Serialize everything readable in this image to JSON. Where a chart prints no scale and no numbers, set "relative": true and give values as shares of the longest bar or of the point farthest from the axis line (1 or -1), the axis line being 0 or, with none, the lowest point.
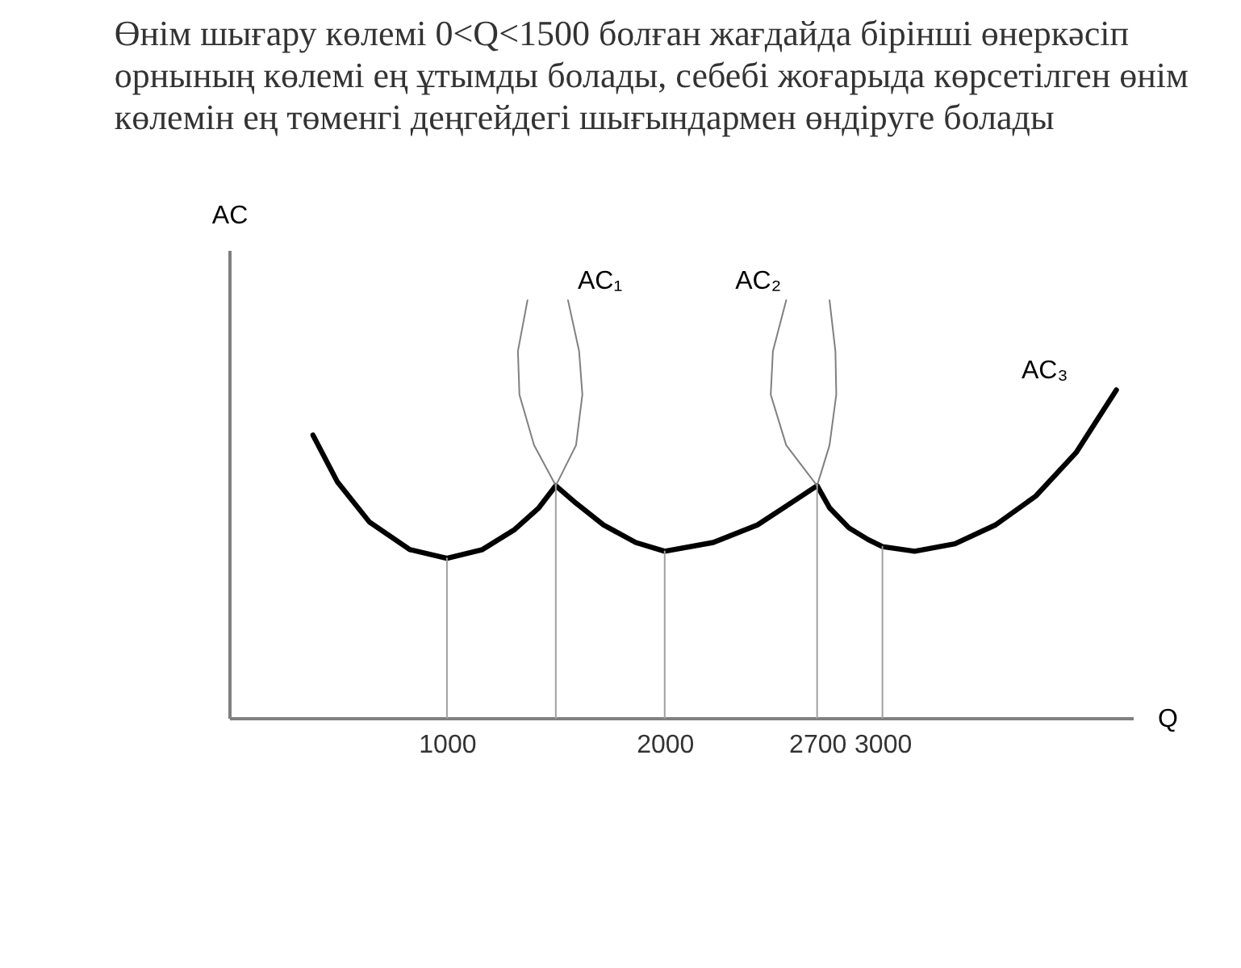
{
  "chart_data": {
    "type": "line",
    "title": "Өнім шығару көлемі 0<Q<1500 болған жағдайда бірінші өнеркәсіп орнының көлемі ең ұтымды болады, себебі жоғарыда көрсетілген өнім көлемін ең төменгі деңгейдегі шығындармен өндіруге болады",
    "xlabel": "Q",
    "ylabel": "AC",
    "relative": true,
    "tick_labels": "x",
    "grid": false,
    "legend": false,
    "marker": "none",
    "line_style": "solid",
    "xlim": [
      0,
      4150
    ],
    "xticks": [
      1000,
      2000,
      2700,
      3000
    ],
    "series": [
      {
        "name": "AC₃",
        "color": "#000000",
        "x": [
          385,
          496,
          644,
          830,
          1000,
          1163,
          1311,
          1422,
          1500,
          1593,
          1719,
          1867,
          2000,
          2223,
          2426,
          2578,
          2700,
          2757,
          2846,
          2934,
          3000,
          3148,
          3333,
          3519,
          3704,
          3889,
          4074
        ],
        "values": [
          0.677,
          0.566,
          0.469,
          0.403,
          0.382,
          0.403,
          0.451,
          0.503,
          0.556,
          0.514,
          0.462,
          0.42,
          0.399,
          0.42,
          0.462,
          0.514,
          0.556,
          0.503,
          0.455,
          0.427,
          0.41,
          0.399,
          0.417,
          0.462,
          0.531,
          0.635,
          0.785
        ]
      },
      {
        "name": "AC₁",
        "color": "#808080",
        "x": [
          1370,
          1326,
          1333,
          1400,
          1500,
          1593,
          1622,
          1607,
          1556
        ],
        "values": [
          1.0,
          0.878,
          0.774,
          0.653,
          0.556,
          0.653,
          0.774,
          0.878,
          1.0
        ]
      },
      {
        "name": "AC₂",
        "color": "#808080",
        "x": [
          2558,
          2497,
          2487,
          2558,
          2700,
          2757,
          2788,
          2784,
          2757
        ],
        "values": [
          1.0,
          0.878,
          0.774,
          0.653,
          0.556,
          0.653,
          0.774,
          0.878,
          1.0
        ]
      },
      {
        "color": "#a0a0a0",
        "x": [
          1000,
          1000
        ],
        "values": [
          0,
          0.382
        ]
      },
      {
        "color": "#a0a0a0",
        "x": [
          1500,
          1500
        ],
        "values": [
          0,
          0.556
        ]
      },
      {
        "color": "#a0a0a0",
        "x": [
          2000,
          2000
        ],
        "values": [
          0,
          0.399
        ]
      },
      {
        "color": "#a0a0a0",
        "x": [
          2700,
          2700
        ],
        "values": [
          0,
          0.556
        ]
      },
      {
        "color": "#a0a0a0",
        "x": [
          3000,
          3000
        ],
        "values": [
          0,
          0.41
        ]
      }
    ]
  }
}
